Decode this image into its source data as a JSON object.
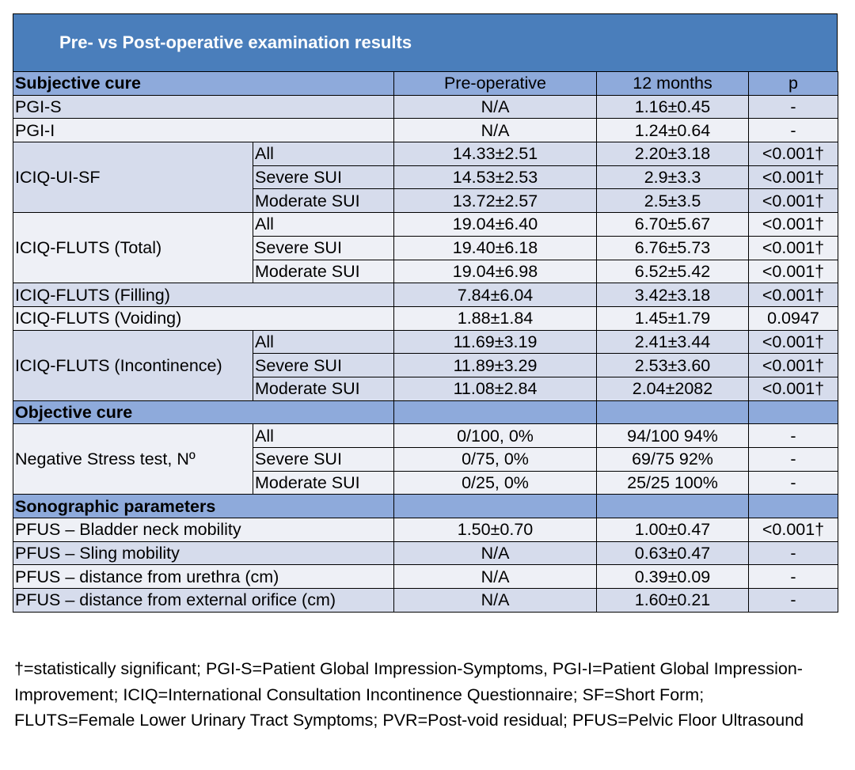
{
  "title": "Pre- vs Post-operative examination results",
  "header": {
    "label": "Subjective cure",
    "col1": "Pre-operative",
    "col2": "12 months",
    "col3": "p"
  },
  "rows": [
    {
      "label": "PGI-S",
      "pre": "N/A",
      "m12": "1.16±0.45",
      "p": "-"
    },
    {
      "label": "PGI-I",
      "pre": "N/A",
      "m12": "1.24±0.64",
      "p": "-"
    }
  ],
  "groups": {
    "iciq_ui_sf": {
      "label": "ICIQ-UI-SF",
      "sub": [
        {
          "name": "All",
          "pre": "14.33±2.51",
          "m12": "2.20±3.18",
          "p": "<0.001†"
        },
        {
          "name": "Severe SUI",
          "pre": "14.53±2.53",
          "m12": "2.9±3.3",
          "p": "<0.001†"
        },
        {
          "name": "Moderate SUI",
          "pre": "13.72±2.57",
          "m12": "2.5±3.5",
          "p": "<0.001†"
        }
      ]
    },
    "flutz_total": {
      "label": "ICIQ-FLUTS (Total)",
      "sub": [
        {
          "name": "All",
          "pre": "19.04±6.40",
          "m12": "6.70±5.67",
          "p": "<0.001†"
        },
        {
          "name": "Severe SUI",
          "pre": "19.40±6.18",
          "m12": "6.76±5.73",
          "p": "<0.001†"
        },
        {
          "name": "Moderate SUI",
          "pre": "19.04±6.98",
          "m12": "6.52±5.42",
          "p": "<0.001†"
        }
      ]
    },
    "flutz_incont": {
      "label": "ICIQ-FLUTS (Incontinence)",
      "sub": [
        {
          "name": "All",
          "pre": "11.69±3.19",
          "m12": "2.41±3.44",
          "p": "<0.001†"
        },
        {
          "name": "Severe SUI",
          "pre": "11.89±3.29",
          "m12": "2.53±3.60",
          "p": "<0.001†"
        },
        {
          "name": "Moderate SUI",
          "pre": "11.08±2.84",
          "m12": "2.04±2082",
          "p": "<0.001†"
        }
      ]
    },
    "stress": {
      "label": "Negative Stress test, Nº",
      "sub": [
        {
          "name": "All",
          "pre": "0/100, 0%",
          "m12": "94/100 94%",
          "p": "-"
        },
        {
          "name": "Severe SUI",
          "pre": "0/75, 0%",
          "m12": "69/75 92%",
          "p": "-"
        },
        {
          "name": "Moderate SUI",
          "pre": "0/25, 0%",
          "m12": "25/25 100%",
          "p": "-"
        }
      ]
    }
  },
  "filling": {
    "label": "ICIQ-FLUTS (Filling)",
    "pre": "7.84±6.04",
    "m12": "3.42±3.18",
    "p": "<0.001†"
  },
  "voiding": {
    "label": "ICIQ-FLUTS (Voiding)",
    "pre": "1.88±1.84",
    "m12": "1.45±1.79",
    "p": "0.0947"
  },
  "objective_label": "Objective cure",
  "sono_label": "Sonographic parameters",
  "sono": [
    {
      "label": "PFUS – Bladder neck mobility",
      "pre": "1.50±0.70",
      "m12": "1.00±0.47",
      "p": "<0.001†"
    },
    {
      "label": "PFUS – Sling mobility",
      "pre": "N/A",
      "m12": "0.63±0.47",
      "p": "-"
    },
    {
      "label": "PFUS – distance from urethra (cm)",
      "pre": "N/A",
      "m12": "0.39±0.09",
      "p": "-"
    },
    {
      "label": "PFUS – distance from external orifice (cm)",
      "pre": "N/A",
      "m12": "1.60±0.21",
      "p": "-"
    }
  ],
  "footnote": "†=statistically significant; PGI-S=Patient Global Impression-Symptoms, PGI-I=Patient Global Impression-Improvement; ICIQ=International Consultation Incontinence Questionnaire; SF=Short Form; FLUTS=Female Lower Urinary Tract Symptoms; PVR=Post-void residual; PFUS=Pelvic Floor Ultrasound",
  "colors": {
    "title_bg": "#4a7ebb",
    "section_bg": "#8eaadb",
    "row_light": "#d6dcec",
    "row_white": "#eef0f6"
  }
}
